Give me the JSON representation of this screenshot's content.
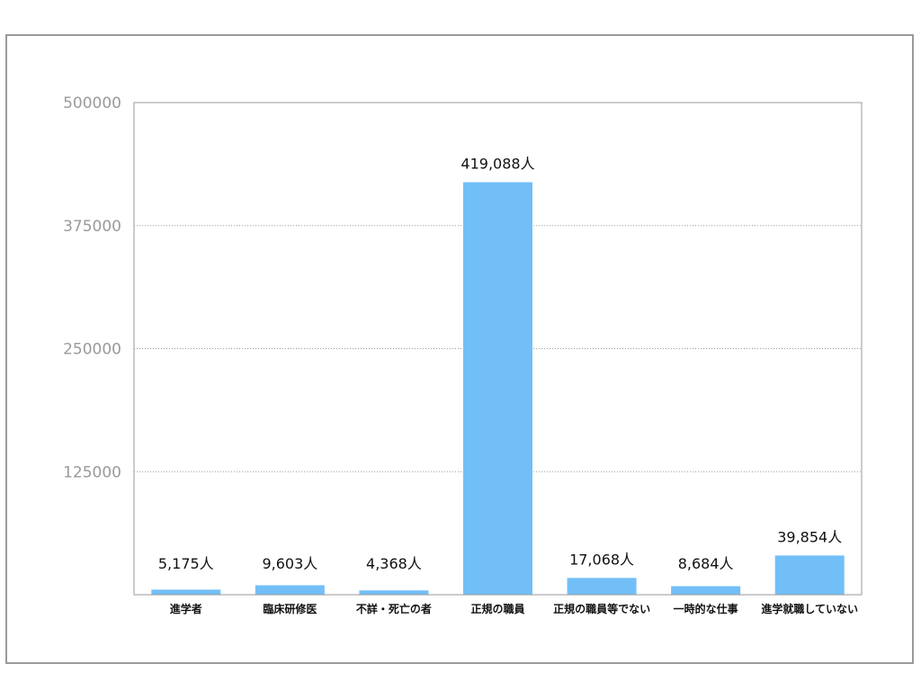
{
  "chart_data": {
    "type": "bar",
    "title": "",
    "xlabel": "",
    "ylabel": "",
    "categories": [
      "進学者",
      "臨床研修医",
      "不詳・死亡の者",
      "正規の職員",
      "正規の職員等でない",
      "一時的な仕事",
      "進学就職していない"
    ],
    "values": [
      5175,
      9603,
      4368,
      419088,
      17068,
      8684,
      39854
    ],
    "data_labels": [
      "5,175人",
      "9,603人",
      "4,368人",
      "419,088人",
      "17,068人",
      "8,684人",
      "39,854人"
    ],
    "ylim": [
      0,
      500000
    ],
    "yticks": [
      "500000",
      "375000",
      "250000",
      "125000"
    ],
    "ytick_values": [
      500000,
      375000,
      250000,
      125000
    ],
    "grid": true,
    "legend": "none",
    "bar_color": "#72bff8",
    "axis_color": "#9a9a9a",
    "grid_color": "#9a9a9a"
  }
}
